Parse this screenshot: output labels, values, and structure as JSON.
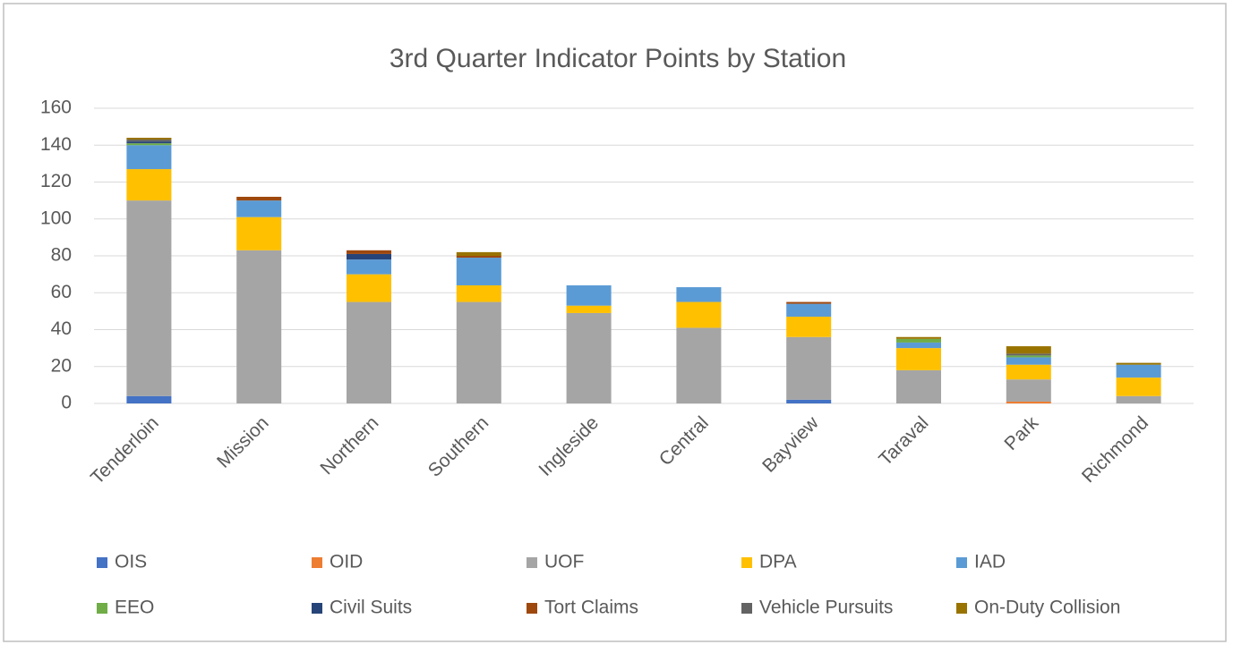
{
  "chart_data": {
    "type": "stacked_bar",
    "title": "3rd Quarter Indicator Points by Station",
    "categories": [
      "Tenderloin",
      "Mission",
      "Northern",
      "Southern",
      "Ingleside",
      "Central",
      "Bayview",
      "Taraval",
      "Park",
      "Richmond"
    ],
    "series": [
      {
        "name": "OIS",
        "color": "#4472c4",
        "values": [
          4,
          0,
          0,
          0,
          0,
          0,
          2,
          0,
          0,
          0
        ]
      },
      {
        "name": "OID",
        "color": "#ed7d31",
        "values": [
          0,
          0,
          0,
          0,
          0,
          0,
          0,
          0,
          1,
          0
        ]
      },
      {
        "name": "UOF",
        "color": "#a5a5a5",
        "values": [
          106,
          83,
          55,
          55,
          49,
          41,
          34,
          18,
          12,
          4
        ]
      },
      {
        "name": "DPA",
        "color": "#ffc000",
        "values": [
          17,
          18,
          15,
          9,
          4,
          14,
          11,
          12,
          8,
          10
        ]
      },
      {
        "name": "IAD",
        "color": "#5b9bd5",
        "values": [
          13,
          9,
          8,
          15,
          11,
          8,
          7,
          3,
          4,
          7
        ]
      },
      {
        "name": "EEO",
        "color": "#70ad47",
        "values": [
          1,
          0,
          0,
          0,
          0,
          0,
          0,
          2,
          1,
          0
        ]
      },
      {
        "name": "Civil Suits",
        "color": "#264478",
        "values": [
          1,
          0,
          3,
          0,
          0,
          0,
          0,
          0,
          0,
          0
        ]
      },
      {
        "name": "Tort Claims",
        "color": "#9e480e",
        "values": [
          0,
          2,
          2,
          1,
          0,
          0,
          1,
          0,
          0,
          0
        ]
      },
      {
        "name": "Vehicle Pursuits",
        "color": "#636363",
        "values": [
          1,
          0,
          0,
          0,
          0,
          0,
          0,
          0,
          1,
          0
        ]
      },
      {
        "name": "On-Duty Collision",
        "color": "#997300",
        "values": [
          1,
          0,
          0,
          2,
          0,
          0,
          0,
          1,
          4,
          1
        ]
      }
    ],
    "ylim": [
      0,
      160
    ],
    "yticks": [
      0,
      20,
      40,
      60,
      80,
      100,
      120,
      140,
      160
    ],
    "grid": true,
    "legend": "bottom"
  }
}
